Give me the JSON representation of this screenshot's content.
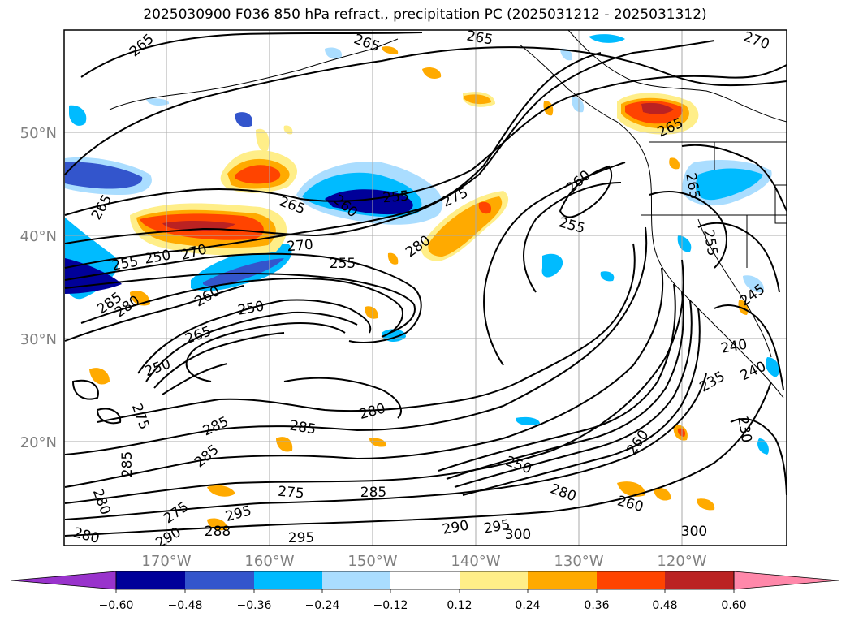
{
  "title": "2025030900 F036 850 hPa refract., precipitation PC (2025031212 - 2025031312)",
  "axes": {
    "lat_labels": [
      "50°N",
      "40°N",
      "30°N",
      "20°N"
    ],
    "lon_labels": [
      "170°W",
      "160°W",
      "150°W",
      "140°W",
      "130°W",
      "120°W"
    ]
  },
  "colorbar": {
    "ticks": [
      "-0.60",
      "-0.48",
      "-0.36",
      "-0.24",
      "-0.12",
      "0.12",
      "0.24",
      "0.36",
      "0.48",
      "0.60"
    ],
    "colors": [
      "#9933cc",
      "#000099",
      "#3355cc",
      "#00bbff",
      "#aaddff",
      "#ffffff",
      "#ffee88",
      "#ffaa00",
      "#ff4400",
      "#bb2222",
      "#ff88aa"
    ]
  },
  "contour_labels": [
    "265",
    "265",
    "265",
    "270",
    "265",
    "265",
    "260",
    "255",
    "275",
    "265",
    "260",
    "255",
    "255",
    "250",
    "270",
    "270",
    "255",
    "280",
    "265",
    "285",
    "280",
    "260",
    "250",
    "265",
    "250",
    "275",
    "280",
    "285",
    "285",
    "285",
    "275",
    "285",
    "280",
    "295",
    "290",
    "275",
    "250",
    "280",
    "260",
    "255",
    "245",
    "240",
    "240",
    "235",
    "230",
    "290",
    "295",
    "300",
    "295",
    "280",
    "285",
    "288",
    "300",
    "260"
  ]
}
